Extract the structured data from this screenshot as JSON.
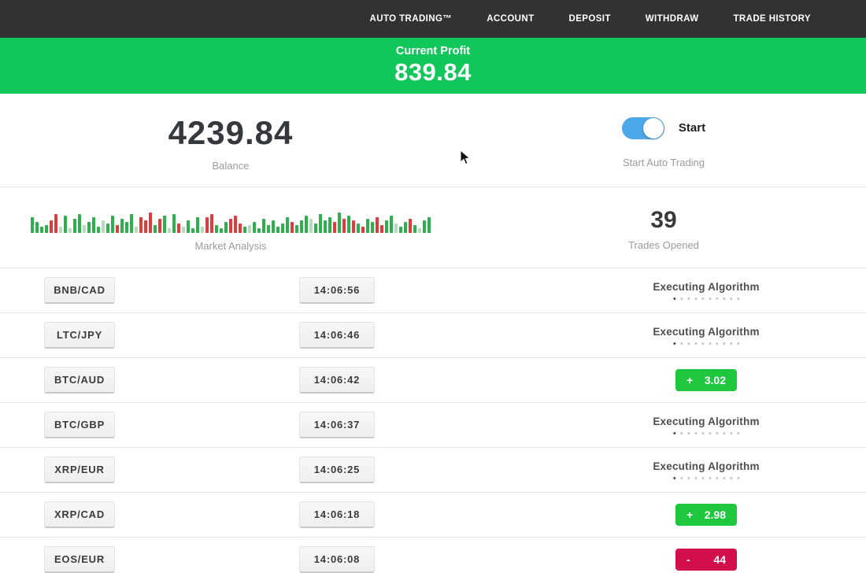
{
  "nav": {
    "items": [
      "AUTO TRADING™",
      "ACCOUNT",
      "DEPOSIT",
      "WITHDRAW",
      "TRADE HISTORY"
    ]
  },
  "profit_banner": {
    "label": "Current Profit",
    "value": "839.84"
  },
  "account": {
    "balance": "4239.84",
    "balance_label": "Balance",
    "toggle_label": "Start",
    "toggle_sub": "Start Auto Trading",
    "toggle_on": true
  },
  "market": {
    "label": "Market Analysis",
    "trades_opened": "39",
    "trades_label": "Trades Opened"
  },
  "chart_data": {
    "type": "bar",
    "title": "Market Analysis",
    "note": "decorative mini candlestick volume bars, bottom-aligned, heights in px, color keys g=green r=red pg=pale-green",
    "bars": [
      [
        20,
        "g"
      ],
      [
        14,
        "g"
      ],
      [
        8,
        "g"
      ],
      [
        10,
        "g"
      ],
      [
        16,
        "r"
      ],
      [
        24,
        "r"
      ],
      [
        8,
        "pg"
      ],
      [
        22,
        "g"
      ],
      [
        6,
        "pg"
      ],
      [
        18,
        "g"
      ],
      [
        24,
        "g"
      ],
      [
        10,
        "pg"
      ],
      [
        14,
        "g"
      ],
      [
        20,
        "g"
      ],
      [
        8,
        "g"
      ],
      [
        16,
        "pg"
      ],
      [
        12,
        "g"
      ],
      [
        22,
        "g"
      ],
      [
        10,
        "r"
      ],
      [
        18,
        "g"
      ],
      [
        14,
        "g"
      ],
      [
        24,
        "g"
      ],
      [
        8,
        "pg"
      ],
      [
        20,
        "r"
      ],
      [
        16,
        "r"
      ],
      [
        26,
        "r"
      ],
      [
        10,
        "g"
      ],
      [
        18,
        "r"
      ],
      [
        22,
        "g"
      ],
      [
        6,
        "pg"
      ],
      [
        24,
        "g"
      ],
      [
        12,
        "r"
      ],
      [
        8,
        "pg"
      ],
      [
        16,
        "g"
      ],
      [
        6,
        "g"
      ],
      [
        20,
        "g"
      ],
      [
        8,
        "pg"
      ],
      [
        20,
        "r"
      ],
      [
        24,
        "r"
      ],
      [
        10,
        "g"
      ],
      [
        6,
        "g"
      ],
      [
        14,
        "g"
      ],
      [
        18,
        "r"
      ],
      [
        22,
        "r"
      ],
      [
        12,
        "r"
      ],
      [
        8,
        "g"
      ],
      [
        10,
        "pg"
      ],
      [
        14,
        "g"
      ],
      [
        6,
        "g"
      ],
      [
        18,
        "g"
      ],
      [
        10,
        "g"
      ],
      [
        16,
        "g"
      ],
      [
        8,
        "g"
      ],
      [
        12,
        "g"
      ],
      [
        20,
        "g"
      ],
      [
        14,
        "r"
      ],
      [
        10,
        "g"
      ],
      [
        16,
        "g"
      ],
      [
        22,
        "g"
      ],
      [
        18,
        "pg"
      ],
      [
        12,
        "g"
      ],
      [
        24,
        "g"
      ],
      [
        16,
        "g"
      ],
      [
        20,
        "g"
      ],
      [
        14,
        "r"
      ],
      [
        26,
        "g"
      ],
      [
        18,
        "r"
      ],
      [
        22,
        "g"
      ],
      [
        16,
        "r"
      ],
      [
        12,
        "g"
      ],
      [
        8,
        "r"
      ],
      [
        18,
        "g"
      ],
      [
        14,
        "g"
      ],
      [
        20,
        "r"
      ],
      [
        10,
        "r"
      ],
      [
        16,
        "g"
      ],
      [
        22,
        "g"
      ],
      [
        12,
        "pg"
      ],
      [
        8,
        "g"
      ],
      [
        14,
        "g"
      ],
      [
        18,
        "r"
      ],
      [
        10,
        "g"
      ],
      [
        6,
        "pg"
      ],
      [
        16,
        "g"
      ],
      [
        20,
        "g"
      ]
    ]
  },
  "trades": [
    {
      "pair": "BNB/CAD",
      "time": "14:06:56",
      "status": "executing",
      "status_label": "Executing Algorithm",
      "dots_total": 10,
      "active_dot": 0
    },
    {
      "pair": "LTC/JPY",
      "time": "14:06:46",
      "status": "executing",
      "status_label": "Executing Algorithm",
      "dots_total": 10,
      "active_dot": 0
    },
    {
      "pair": "BTC/AUD",
      "time": "14:06:42",
      "status": "profit",
      "sign": "+",
      "value": "3.02"
    },
    {
      "pair": "BTC/GBP",
      "time": "14:06:37",
      "status": "executing",
      "status_label": "Executing Algorithm",
      "dots_total": 10,
      "active_dot": 0
    },
    {
      "pair": "XRP/EUR",
      "time": "14:06:25",
      "status": "executing",
      "status_label": "Executing Algorithm",
      "dots_total": 10,
      "active_dot": 0
    },
    {
      "pair": "XRP/CAD",
      "time": "14:06:18",
      "status": "profit",
      "sign": "+",
      "value": "2.98"
    },
    {
      "pair": "EOS/EUR",
      "time": "14:06:08",
      "status": "loss",
      "sign": "-",
      "value": "44"
    }
  ],
  "colors": {
    "nav_bg": "#323232",
    "banner_green": "#12c75a",
    "badge_green": "#1ec73e",
    "badge_red": "#d30f4b",
    "toggle_blue": "#4da8e9",
    "bar_green": "#2fae4d",
    "bar_red": "#df3b3c",
    "bar_pale_green": "#b7dcba"
  }
}
